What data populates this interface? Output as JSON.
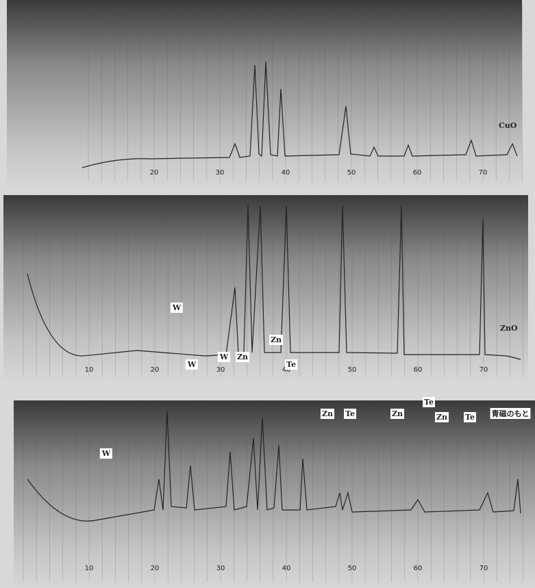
{
  "panels": [
    {
      "label": "CuO",
      "ticks": [
        "20",
        "30",
        "40",
        "50",
        "60",
        "70"
      ],
      "annotations": []
    },
    {
      "label": "ZnO",
      "ticks": [
        "10",
        "20",
        "30",
        "40",
        "50",
        "60",
        "70"
      ],
      "annotations": []
    },
    {
      "label": null,
      "ticks": [
        "10",
        "20",
        "30",
        "40",
        "50",
        "60",
        "70"
      ],
      "annotations": [
        "W",
        "W",
        "W",
        "W",
        "Zn",
        "Zn",
        "Te",
        "Zn",
        "Te",
        "Zn",
        "Te",
        "Zn",
        "Te",
        "青磁のもと"
      ]
    }
  ]
}
